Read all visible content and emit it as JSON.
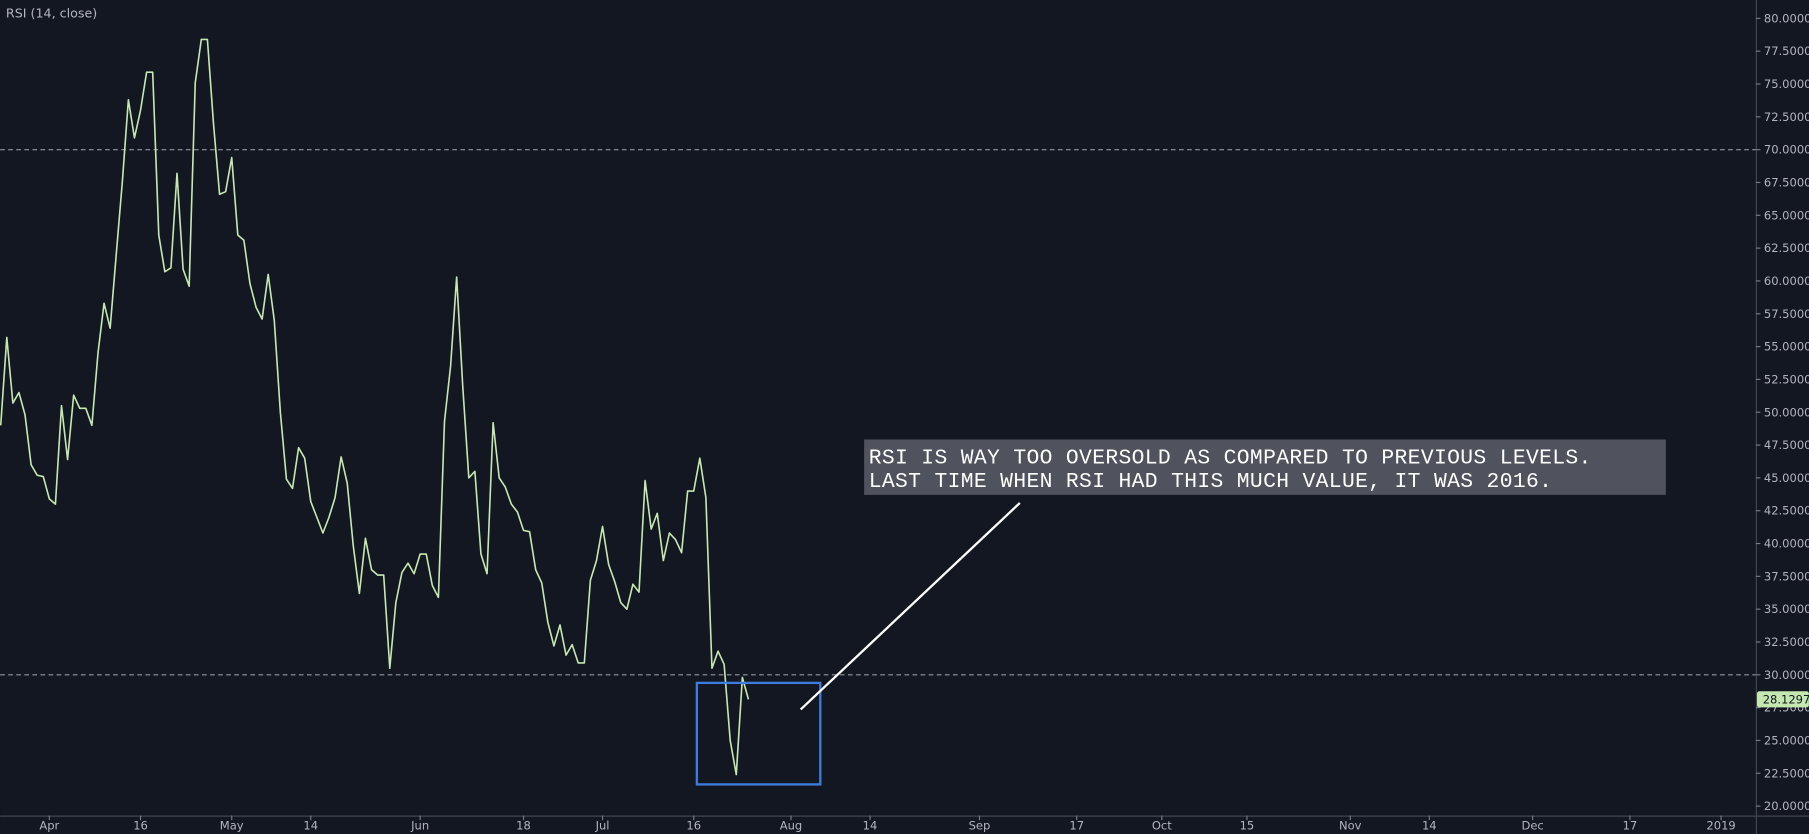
{
  "chart_data": {
    "type": "line",
    "title": "RSI (14, close)",
    "categories": [
      null,
      null,
      null,
      null,
      null,
      null,
      null,
      null,
      "Apr",
      null,
      null,
      null,
      null,
      null,
      null,
      null,
      null,
      null,
      null,
      null,
      null,
      null,
      null,
      "16",
      null,
      null,
      null,
      null,
      null,
      null,
      null,
      null,
      null,
      null,
      null,
      null,
      null,
      null,
      "May",
      null,
      null,
      null,
      null,
      null,
      null,
      null,
      null,
      null,
      null,
      null,
      null,
      "14",
      null,
      null,
      null,
      null,
      null,
      null,
      null,
      null,
      null,
      null,
      null,
      null,
      null,
      null,
      null,
      null,
      null,
      "Jun",
      null,
      null,
      null,
      null,
      null,
      null,
      null,
      null,
      null,
      null,
      null,
      null,
      null,
      null,
      null,
      null,
      "18",
      null,
      null,
      null,
      null,
      null,
      null,
      null,
      null,
      null,
      null,
      null,
      null,
      "Jul",
      null,
      null,
      null,
      null,
      null,
      null,
      null,
      null,
      null,
      null,
      null,
      null,
      null,
      null,
      "16",
      null,
      null,
      null,
      null,
      null,
      null,
      null,
      null,
      null,
      null,
      null,
      null,
      null,
      null,
      null,
      "Aug",
      null,
      null,
      null,
      null,
      null,
      null,
      null,
      null,
      null,
      null,
      null,
      null,
      "14",
      null,
      null,
      null,
      null,
      null,
      null,
      null,
      null,
      null,
      null,
      null,
      null,
      null,
      null,
      null,
      null,
      null,
      "Sep",
      null,
      null,
      null,
      null,
      null,
      null,
      null,
      null,
      null,
      null,
      null,
      null,
      null,
      null,
      null,
      "17",
      null,
      null,
      null,
      null,
      null,
      null,
      null,
      null,
      null,
      null,
      null,
      null,
      null,
      "Oct",
      null,
      null,
      null,
      null,
      null,
      null,
      null,
      null,
      null,
      null,
      null,
      null,
      null,
      "15",
      null,
      null,
      null,
      null,
      null,
      null,
      null,
      null,
      null,
      null,
      null,
      null,
      null,
      null,
      null,
      null,
      "Nov",
      null,
      null,
      null,
      null,
      null,
      null,
      null,
      null,
      null,
      null,
      null,
      null,
      "14",
      null,
      null,
      null,
      null,
      null,
      null,
      null,
      null,
      null,
      null,
      null,
      null,
      null,
      null,
      null,
      null,
      "Dec",
      null,
      null,
      null,
      null,
      null,
      null,
      null,
      null,
      null,
      null,
      null,
      null,
      null,
      null,
      null,
      "17",
      null,
      null,
      null,
      null,
      null,
      null,
      null,
      null,
      null,
      null,
      null,
      null,
      null,
      null,
      "2019"
    ],
    "series": [
      {
        "color": "#c5e8b0",
        "values": [
          49,
          55.7,
          50.7,
          51.5,
          49.8,
          46,
          45.2,
          45.1,
          43.4,
          43,
          50.5,
          46.4,
          51.3,
          50.3,
          50.3,
          49,
          54.5,
          58.3,
          56.4,
          62,
          67.5,
          73.8,
          70.9,
          73,
          75.9,
          75.9,
          63.5,
          60.7,
          61,
          68.2,
          60.9,
          59.6,
          75.1,
          78.4,
          78.4,
          72,
          66.6,
          66.8,
          69.4,
          63.5,
          63.1,
          59.8,
          58,
          57.1,
          60.5,
          57,
          50,
          44.9,
          44.2,
          47.3,
          46.5,
          43.2,
          42,
          40.8,
          42,
          43.5,
          46.6,
          44.6,
          39.8,
          36.2,
          40.4,
          38,
          37.6,
          37.6,
          30.5,
          35.5,
          37.8,
          38.5,
          37.7,
          39.2,
          39.2,
          36.8,
          35.9,
          49.3,
          53.5,
          60.3,
          52,
          45,
          45.5,
          39.2,
          37.7,
          49.2,
          45,
          44.3,
          43,
          42.4,
          41,
          40.9,
          38,
          37,
          34,
          32.2,
          33.8,
          31.5,
          32.3,
          30.9,
          30.9,
          37.2,
          38.7,
          41.3,
          38.4,
          37.1,
          35.5,
          35,
          36.9,
          36.3,
          44.8,
          41.1,
          42.3,
          38.7,
          40.8,
          40.3,
          39.3,
          44,
          44,
          46.5,
          43.5,
          30.5,
          31.8,
          30.8,
          25,
          22.4,
          29.8,
          28.1297,
          null,
          null,
          null,
          null,
          null,
          null,
          null,
          null,
          null,
          null,
          null,
          null,
          null,
          null,
          null,
          null,
          null,
          null,
          null,
          null,
          null,
          null,
          null,
          null,
          null,
          null,
          null,
          null,
          null,
          null,
          null,
          null,
          null,
          null,
          null,
          null,
          null,
          null,
          null,
          null,
          null,
          null,
          null,
          null,
          null,
          null,
          null,
          null,
          null,
          null,
          null,
          null,
          null,
          null,
          null,
          null,
          null,
          null,
          null,
          null,
          null,
          null,
          null,
          null,
          null,
          null,
          null,
          null,
          null,
          null,
          null,
          null,
          null,
          null,
          null,
          null,
          null,
          null,
          null,
          null,
          null,
          null,
          null,
          null,
          null,
          null,
          null,
          null,
          null,
          null,
          null,
          null,
          null,
          null,
          null,
          null,
          null,
          null,
          null,
          null,
          null,
          null,
          null,
          null,
          null,
          null,
          null,
          null,
          null,
          null,
          null,
          null,
          null,
          null,
          null,
          null,
          null,
          null,
          null,
          null,
          null,
          null,
          null,
          null,
          null,
          null,
          null,
          null,
          null,
          null,
          null,
          null,
          null,
          null,
          null,
          null,
          null,
          null,
          null,
          null,
          null,
          null,
          null,
          null,
          null,
          null,
          null,
          null,
          null,
          null,
          null,
          null,
          null,
          null,
          null,
          null,
          null,
          null,
          null,
          null
        ]
      }
    ],
    "ylim": [
      19.28,
      81.4
    ],
    "yticks": [
      {
        "value": 20,
        "label": "20.0000"
      },
      {
        "value": 22.5,
        "label": "22.5000"
      },
      {
        "value": 25,
        "label": "25.0000"
      },
      {
        "value": 27.5,
        "label": "27.5000"
      },
      {
        "value": 30,
        "label": "30.0000"
      },
      {
        "value": 32.5,
        "label": "32.5000"
      },
      {
        "value": 35,
        "label": "35.0000"
      },
      {
        "value": 37.5,
        "label": "37.5000"
      },
      {
        "value": 40,
        "label": "40.0000"
      },
      {
        "value": 42.5,
        "label": "42.5000"
      },
      {
        "value": 45,
        "label": "45.0000"
      },
      {
        "value": 47.5,
        "label": "47.5000"
      },
      {
        "value": 50,
        "label": "50.0000"
      },
      {
        "value": 52.5,
        "label": "52.5000"
      },
      {
        "value": 55,
        "label": "55.0000"
      },
      {
        "value": 57.5,
        "label": "57.5000"
      },
      {
        "value": 60,
        "label": "60.0000"
      },
      {
        "value": 62.5,
        "label": "62.5000"
      },
      {
        "value": 65,
        "label": "65.0000"
      },
      {
        "value": 67.5,
        "label": "67.5000"
      },
      {
        "value": 70,
        "label": "70.0000"
      },
      {
        "value": 72.5,
        "label": "72.5000"
      },
      {
        "value": 75,
        "label": "75.0000"
      },
      {
        "value": 77.5,
        "label": "77.5000"
      },
      {
        "value": 80,
        "label": "80.0000"
      }
    ],
    "hlines": [
      70,
      30
    ],
    "annotation": [
      "RSI IS WAY TOO OVERSOLD AS COMPARED TO PREVIOUS LEVELS.",
      "LAST TIME WHEN RSI HAD THIS MUCH VALUE, IT WAS 2016."
    ]
  }
}
